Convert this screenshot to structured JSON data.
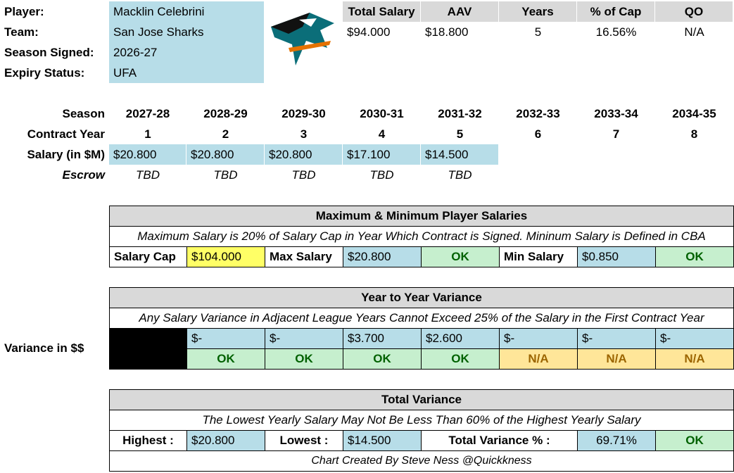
{
  "player_info": {
    "labels": [
      "Player:",
      "Team:",
      "Season Signed:",
      "Expiry Status:"
    ],
    "values": [
      "Macklin Celebrini",
      "San Jose Sharks",
      "2026-27",
      "UFA"
    ]
  },
  "summary": {
    "headers": [
      "Total Salary",
      "AAV",
      "Years",
      "% of Cap",
      "QO"
    ],
    "total_salary": {
      "currency": "$",
      "amount": "94.000"
    },
    "aav": {
      "currency": "$",
      "amount": "18.800"
    },
    "years": "5",
    "pct_of_cap": "16.56%",
    "qo": "N/A"
  },
  "contract": {
    "labels": [
      "Season",
      "Contract Year",
      "Salary (in $M)",
      "Escrow"
    ],
    "seasons": [
      "2027-28",
      "2028-29",
      "2029-30",
      "2030-31",
      "2031-32",
      "2032-33",
      "2033-34",
      "2034-35"
    ],
    "contract_years": [
      "1",
      "2",
      "3",
      "4",
      "5",
      "6",
      "7",
      "8"
    ],
    "salaries": [
      {
        "currency": "$",
        "amount": "20.800"
      },
      {
        "currency": "$",
        "amount": "20.800"
      },
      {
        "currency": "$",
        "amount": "20.800"
      },
      {
        "currency": "$",
        "amount": "17.100"
      },
      {
        "currency": "$",
        "amount": "14.500"
      }
    ],
    "escrow": [
      "TBD",
      "TBD",
      "TBD",
      "TBD",
      "TBD"
    ]
  },
  "max_min": {
    "title": "Maximum & Minimum Player Salaries",
    "note": "Maximum Salary is 20% of Salary Cap in Year Which Contract is Signed. Mininum Salary is Defined in CBA",
    "salary_cap_label": "Salary Cap",
    "salary_cap": {
      "currency": "$",
      "amount": "104.000"
    },
    "max_salary_label": "Max Salary",
    "max_salary": {
      "currency": "$",
      "amount": "20.800"
    },
    "max_status": "OK",
    "min_salary_label": "Min Salary",
    "min_salary": {
      "currency": "$",
      "amount": "0.850"
    },
    "min_status": "OK"
  },
  "year_variance": {
    "title": "Year to Year Variance",
    "note": "Any Salary Variance in Adjacent League Years Cannot Exceed 25% of the Salary in the First Contract Year",
    "row_label": "Variance in $$",
    "values": [
      {
        "currency": "$",
        "amount": "-"
      },
      {
        "currency": "$",
        "amount": "-"
      },
      {
        "currency": "$",
        "amount": "3.700"
      },
      {
        "currency": "$",
        "amount": "2.600"
      },
      {
        "currency": "$",
        "amount": "-"
      },
      {
        "currency": "$",
        "amount": "-"
      },
      {
        "currency": "$",
        "amount": "-"
      }
    ],
    "statuses": [
      "OK",
      "OK",
      "OK",
      "OK",
      "N/A",
      "N/A",
      "N/A"
    ]
  },
  "total_variance": {
    "title": "Total Variance",
    "note": "The Lowest Yearly Salary May Not Be Less Than 60% of the Highest Yearly Salary",
    "highest_label": "Highest :",
    "highest": {
      "currency": "$",
      "amount": "20.800"
    },
    "lowest_label": "Lowest :",
    "lowest": {
      "currency": "$",
      "amount": "14.500"
    },
    "pct_label": "Total Variance % :",
    "pct": "69.71%",
    "status": "OK"
  },
  "credit": "Chart Created By Steve Ness @Quickkness"
}
